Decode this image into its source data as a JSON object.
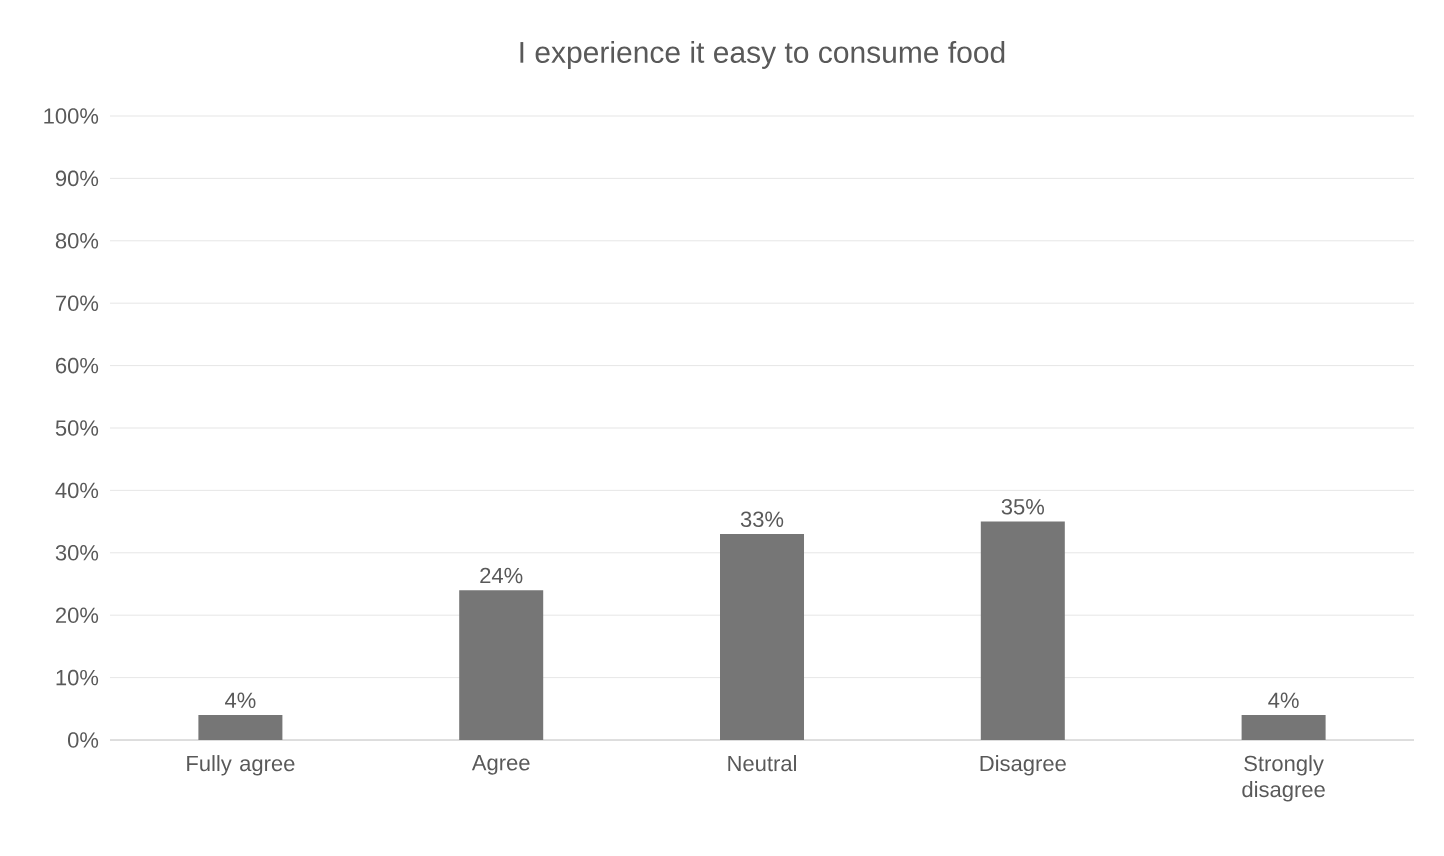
{
  "chart_data": {
    "type": "bar",
    "title": "I experience it easy to consume food",
    "categories": [
      "Fully agree",
      "Agree",
      "Neutral",
      "Disagree",
      "Strongly disagree"
    ],
    "values": [
      4,
      24,
      33,
      35,
      4
    ],
    "value_labels": [
      "4%",
      "24%",
      "33%",
      "35%",
      "4%"
    ],
    "color": "#767676",
    "ylim": [
      0,
      100
    ],
    "yticks": [
      {
        "value": 0,
        "label": "0%"
      },
      {
        "value": 10,
        "label": "10%"
      },
      {
        "value": 20,
        "label": "20%"
      },
      {
        "value": 30,
        "label": "30%"
      },
      {
        "value": 40,
        "label": "40%"
      },
      {
        "value": 50,
        "label": "50%"
      },
      {
        "value": 60,
        "label": "60%"
      },
      {
        "value": 70,
        "label": "70%"
      },
      {
        "value": 80,
        "label": "80%"
      },
      {
        "value": 90,
        "label": "90%"
      },
      {
        "value": 100,
        "label": "100%"
      }
    ],
    "grid": "y"
  }
}
